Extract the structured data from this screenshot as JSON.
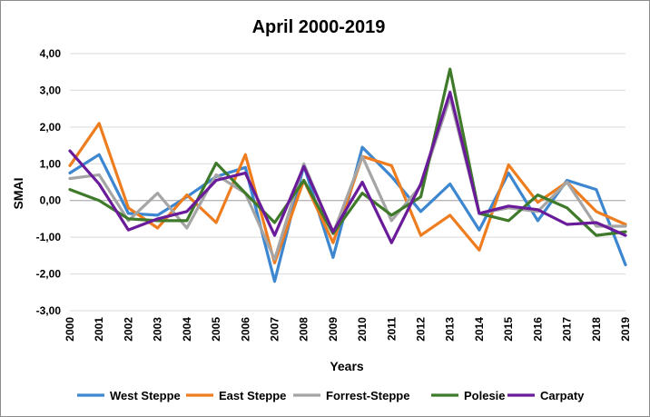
{
  "chart_data": {
    "type": "line",
    "title": "April 2000-2019",
    "xlabel": "Years",
    "ylabel": "SMAI",
    "ylim": [
      -3,
      4
    ],
    "ytick_step": 1,
    "ytick_labels": [
      "-3,00",
      "-2,00",
      "-1,00",
      "0,00",
      "1,00",
      "2,00",
      "3,00",
      "4,00"
    ],
    "grid": "horizontal",
    "legend_position": "bottom",
    "categories": [
      "2000",
      "2001",
      "2002",
      "2003",
      "2004",
      "2005",
      "2006",
      "2007",
      "2008",
      "2009",
      "2010",
      "2011",
      "2012",
      "2013",
      "2014",
      "2015",
      "2016",
      "2017",
      "2018",
      "2019"
    ],
    "series": [
      {
        "name": "West Steppe",
        "color": "#3d86d0",
        "values": [
          0.75,
          1.25,
          -0.35,
          -0.4,
          0.1,
          0.65,
          0.9,
          -2.2,
          0.95,
          -1.55,
          1.45,
          0.65,
          -0.3,
          0.45,
          -0.8,
          0.75,
          -0.55,
          0.55,
          0.3,
          -1.75
        ]
      },
      {
        "name": "East Steppe",
        "color": "#ee7d20",
        "values": [
          0.95,
          2.1,
          -0.2,
          -0.75,
          0.15,
          -0.6,
          1.25,
          -1.7,
          0.55,
          -1.15,
          1.2,
          0.95,
          -0.95,
          -0.4,
          -1.35,
          0.97,
          -0.05,
          0.5,
          -0.3,
          -0.65
        ]
      },
      {
        "name": "Forrest-Steppe",
        "color": "#a5a5a5",
        "values": [
          0.6,
          0.7,
          -0.55,
          0.2,
          -0.75,
          0.7,
          0.2,
          -1.6,
          1.0,
          -0.9,
          1.2,
          -0.55,
          0.4,
          2.8,
          -0.35,
          -0.2,
          -0.3,
          0.5,
          -0.7,
          -0.7
        ]
      },
      {
        "name": "Polesie",
        "color": "#3f7a2b",
        "values": [
          0.3,
          0.0,
          -0.5,
          -0.55,
          -0.55,
          1.02,
          0.2,
          -0.6,
          0.55,
          -0.9,
          0.2,
          -0.4,
          0.1,
          3.58,
          -0.35,
          -0.55,
          0.15,
          -0.2,
          -0.95,
          -0.85
        ]
      },
      {
        "name": "Carpaty",
        "color": "#6a1b9a",
        "values": [
          1.35,
          0.45,
          -0.8,
          -0.5,
          -0.3,
          0.55,
          0.75,
          -0.95,
          0.93,
          -0.85,
          0.5,
          -1.15,
          0.45,
          2.95,
          -0.35,
          -0.15,
          -0.25,
          -0.65,
          -0.6,
          -0.95
        ]
      }
    ]
  }
}
